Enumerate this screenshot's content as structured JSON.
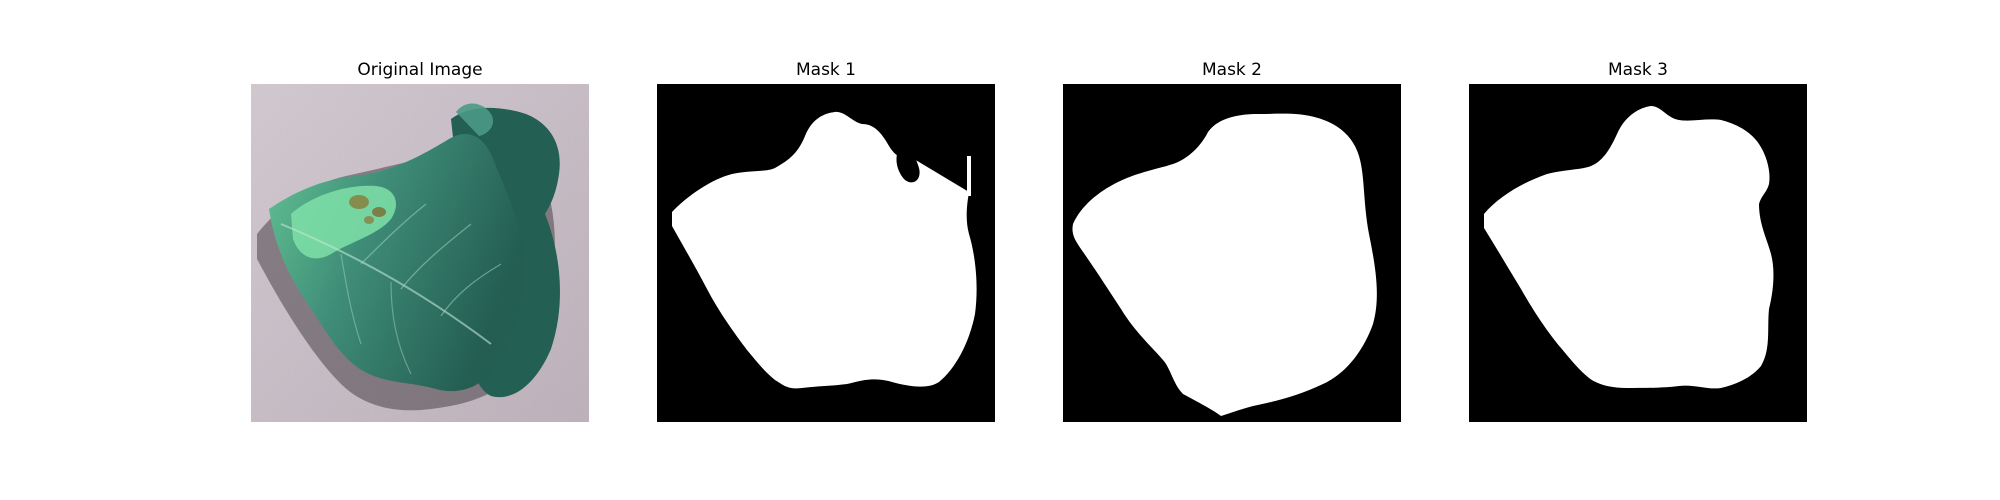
{
  "figure": {
    "panels": [
      {
        "title": "Original Image",
        "kind": "photo",
        "subject": "leaf"
      },
      {
        "title": "Mask 1",
        "kind": "binary-mask",
        "foreground": "#ffffff",
        "background": "#000000"
      },
      {
        "title": "Mask 2",
        "kind": "binary-mask",
        "foreground": "#ffffff",
        "background": "#000000"
      },
      {
        "title": "Mask 3",
        "kind": "binary-mask",
        "foreground": "#ffffff",
        "background": "#000000"
      }
    ]
  },
  "colors": {
    "background_surface": "#cfc4cc",
    "leaf_dark": "#1f5a4c",
    "leaf_mid": "#3f8d78",
    "leaf_light": "#6fd2a4",
    "shadow": "#3a3a3e"
  }
}
